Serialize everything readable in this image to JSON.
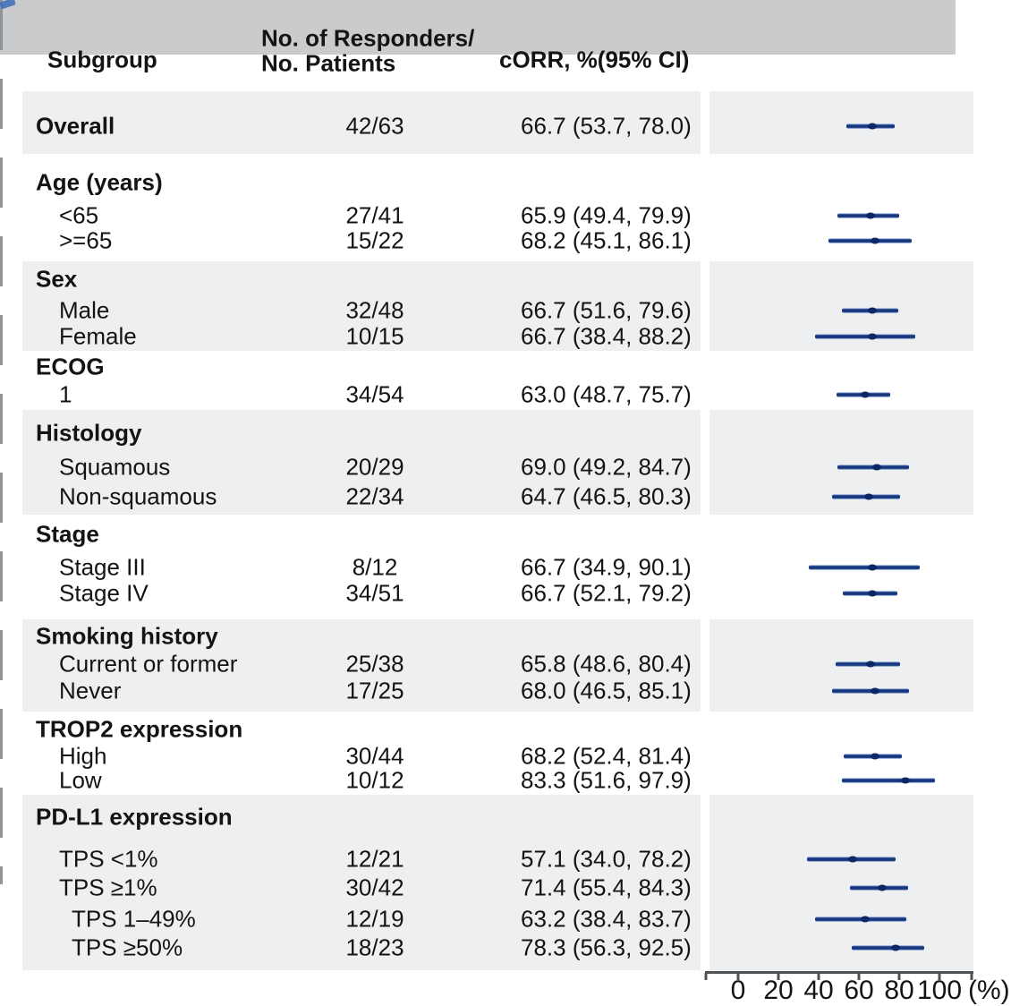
{
  "header": {
    "col_subgroup": "Subgroup",
    "col_responders_line1": "No. of Responders/",
    "col_responders_line2": "No. Patients",
    "col_corr": "cORR, %(95% CI)"
  },
  "colors": {
    "header_bg": "#c9cbcc",
    "band_bg": "#edeff0",
    "ci_line": "#17367e",
    "ci_point": "#0b2766",
    "reference_line": "#909498",
    "axis": "#4e5256",
    "text": "#141414"
  },
  "chart_data": {
    "type": "forest",
    "x_axis": {
      "ticks": [
        0,
        20,
        40,
        60,
        80,
        100
      ],
      "unit_label": "(%)",
      "xlim": [
        0,
        100
      ]
    },
    "reference_value": 66.7,
    "rows": [
      {
        "label": "Overall",
        "level": 0,
        "is_header": true,
        "responders": "42/63",
        "corr_text": "66.7 (53.7, 78.0)",
        "est": 66.7,
        "ci_low": 53.7,
        "ci_high": 78.0
      },
      {
        "label": "Age (years)",
        "level": 0,
        "is_header": true,
        "responders": null,
        "corr_text": null,
        "est": null,
        "ci_low": null,
        "ci_high": null
      },
      {
        "label": "<65",
        "level": 1,
        "is_header": false,
        "responders": "27/41",
        "corr_text": "65.9 (49.4, 79.9)",
        "est": 65.9,
        "ci_low": 49.4,
        "ci_high": 79.9
      },
      {
        "label": ">=65",
        "level": 1,
        "is_header": false,
        "responders": "15/22",
        "corr_text": "68.2 (45.1, 86.1)",
        "est": 68.2,
        "ci_low": 45.1,
        "ci_high": 86.1
      },
      {
        "label": "Sex",
        "level": 0,
        "is_header": true,
        "responders": null,
        "corr_text": null,
        "est": null,
        "ci_low": null,
        "ci_high": null
      },
      {
        "label": "Male",
        "level": 1,
        "is_header": false,
        "responders": "32/48",
        "corr_text": "66.7 (51.6, 79.6)",
        "est": 66.7,
        "ci_low": 51.6,
        "ci_high": 79.6
      },
      {
        "label": "Female",
        "level": 1,
        "is_header": false,
        "responders": "10/15",
        "corr_text": "66.7 (38.4, 88.2)",
        "est": 66.7,
        "ci_low": 38.4,
        "ci_high": 88.2
      },
      {
        "label": "ECOG",
        "level": 0,
        "is_header": true,
        "responders": null,
        "corr_text": null,
        "est": null,
        "ci_low": null,
        "ci_high": null
      },
      {
        "label": "1",
        "level": 1,
        "is_header": false,
        "responders": "34/54",
        "corr_text": "63.0 (48.7, 75.7)",
        "est": 63.0,
        "ci_low": 48.7,
        "ci_high": 75.7
      },
      {
        "label": "Histology",
        "level": 0,
        "is_header": true,
        "responders": null,
        "corr_text": null,
        "est": null,
        "ci_low": null,
        "ci_high": null
      },
      {
        "label": "Squamous",
        "level": 1,
        "is_header": false,
        "responders": "20/29",
        "corr_text": "69.0 (49.2, 84.7)",
        "est": 69.0,
        "ci_low": 49.2,
        "ci_high": 84.7
      },
      {
        "label": "Non-squamous",
        "level": 1,
        "is_header": false,
        "responders": "22/34",
        "corr_text": "64.7 (46.5, 80.3)",
        "est": 64.7,
        "ci_low": 46.5,
        "ci_high": 80.3
      },
      {
        "label": "Stage",
        "level": 0,
        "is_header": true,
        "responders": null,
        "corr_text": null,
        "est": null,
        "ci_low": null,
        "ci_high": null
      },
      {
        "label": "Stage III",
        "level": 1,
        "is_header": false,
        "responders": "8/12",
        "corr_text": "66.7 (34.9, 90.1)",
        "est": 66.7,
        "ci_low": 34.9,
        "ci_high": 90.1
      },
      {
        "label": "Stage IV",
        "level": 1,
        "is_header": false,
        "responders": "34/51",
        "corr_text": "66.7 (52.1, 79.2)",
        "est": 66.7,
        "ci_low": 52.1,
        "ci_high": 79.2
      },
      {
        "label": "Smoking history",
        "level": 0,
        "is_header": true,
        "responders": null,
        "corr_text": null,
        "est": null,
        "ci_low": null,
        "ci_high": null
      },
      {
        "label": "Current or former",
        "level": 1,
        "is_header": false,
        "responders": "25/38",
        "corr_text": "65.8 (48.6, 80.4)",
        "est": 65.8,
        "ci_low": 48.6,
        "ci_high": 80.4
      },
      {
        "label": "Never",
        "level": 1,
        "is_header": false,
        "responders": "17/25",
        "corr_text": "68.0 (46.5, 85.1)",
        "est": 68.0,
        "ci_low": 46.5,
        "ci_high": 85.1
      },
      {
        "label": "TROP2 expression",
        "level": 0,
        "is_header": true,
        "responders": null,
        "corr_text": null,
        "est": null,
        "ci_low": null,
        "ci_high": null
      },
      {
        "label": "High",
        "level": 1,
        "is_header": false,
        "responders": "30/44",
        "corr_text": "68.2 (52.4, 81.4)",
        "est": 68.2,
        "ci_low": 52.4,
        "ci_high": 81.4
      },
      {
        "label": "Low",
        "level": 1,
        "is_header": false,
        "responders": "10/12",
        "corr_text": "83.3 (51.6, 97.9)",
        "est": 83.3,
        "ci_low": 51.6,
        "ci_high": 97.9
      },
      {
        "label": "PD-L1 expression",
        "level": 0,
        "is_header": true,
        "responders": null,
        "corr_text": null,
        "est": null,
        "ci_low": null,
        "ci_high": null
      },
      {
        "label": "TPS <1%",
        "level": 1,
        "is_header": false,
        "responders": "12/21",
        "corr_text": "57.1 (34.0, 78.2)",
        "est": 57.1,
        "ci_low": 34.0,
        "ci_high": 78.2
      },
      {
        "label": "TPS ≥1%",
        "level": 1,
        "is_header": false,
        "responders": "30/42",
        "corr_text": "71.4 (55.4, 84.3)",
        "est": 71.4,
        "ci_low": 55.4,
        "ci_high": 84.3
      },
      {
        "label": "TPS 1–49%",
        "level": 2,
        "is_header": false,
        "responders": "12/19",
        "corr_text": "63.2 (38.4, 83.7)",
        "est": 63.2,
        "ci_low": 38.4,
        "ci_high": 83.7
      },
      {
        "label": "TPS ≥50%",
        "level": 2,
        "is_header": false,
        "responders": "18/23",
        "corr_text": "78.3 (56.3, 92.5)",
        "est": 78.3,
        "ci_low": 56.3,
        "ci_high": 92.5
      }
    ]
  }
}
